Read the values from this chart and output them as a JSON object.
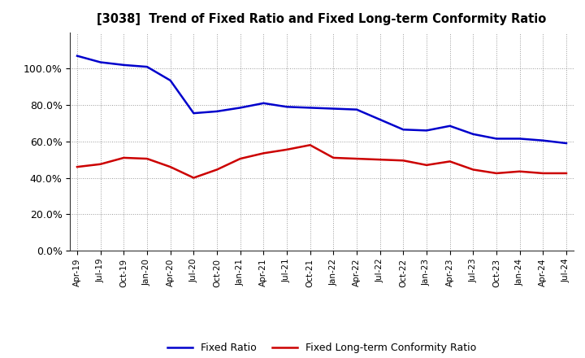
{
  "title": "[3038]  Trend of Fixed Ratio and Fixed Long-term Conformity Ratio",
  "x_labels": [
    "Apr-19",
    "Jul-19",
    "Oct-19",
    "Jan-20",
    "Apr-20",
    "Jul-20",
    "Oct-20",
    "Jan-21",
    "Apr-21",
    "Jul-21",
    "Oct-21",
    "Jan-22",
    "Apr-22",
    "Jul-22",
    "Oct-22",
    "Jan-23",
    "Apr-23",
    "Jul-23",
    "Oct-23",
    "Jan-24",
    "Apr-24",
    "Jul-24"
  ],
  "fixed_ratio": [
    107.0,
    103.5,
    102.0,
    101.0,
    93.5,
    75.5,
    76.5,
    78.5,
    81.0,
    79.0,
    78.5,
    78.0,
    77.5,
    72.0,
    66.5,
    66.0,
    68.5,
    64.0,
    61.5,
    61.5,
    60.5,
    59.0
  ],
  "fixed_lt_ratio": [
    46.0,
    47.5,
    51.0,
    50.5,
    46.0,
    40.0,
    44.5,
    50.5,
    53.5,
    55.5,
    58.0,
    51.0,
    50.5,
    50.0,
    49.5,
    47.0,
    49.0,
    44.5,
    42.5,
    43.5,
    42.5,
    42.5
  ],
  "fixed_ratio_color": "#0000CC",
  "fixed_lt_ratio_color": "#CC0000",
  "ylim": [
    0,
    120
  ],
  "yticks": [
    0,
    20,
    40,
    60,
    80,
    100
  ],
  "background_color": "#FFFFFF",
  "grid_color": "#999999",
  "legend_fixed": "Fixed Ratio",
  "legend_lt": "Fixed Long-term Conformity Ratio"
}
